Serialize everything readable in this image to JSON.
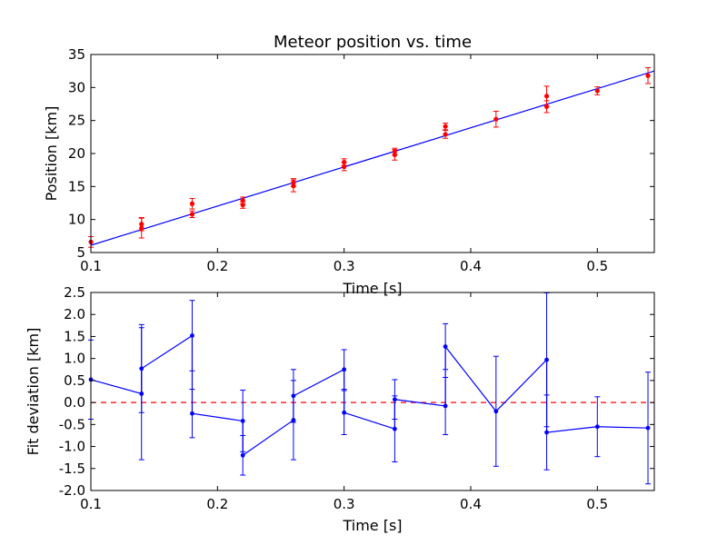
{
  "chart_data": [
    {
      "type": "scatter",
      "title": "Meteor position vs. time",
      "xlabel": "Time [s]",
      "ylabel": "Position [km]",
      "xlim": [
        0.1,
        0.545
      ],
      "ylim": [
        5,
        35
      ],
      "xticks": [
        0.1,
        0.2,
        0.3,
        0.4,
        0.5
      ],
      "yticks": [
        5,
        10,
        15,
        20,
        25,
        30,
        35
      ],
      "grid": false,
      "colors": {
        "points": "#ff0000",
        "fit": "#0000ff"
      },
      "points": [
        {
          "x": 0.1,
          "y": 6.6,
          "err": 0.8
        },
        {
          "x": 0.14,
          "y": 8.7,
          "err": 1.5
        },
        {
          "x": 0.14,
          "y": 9.3,
          "err": 1.0
        },
        {
          "x": 0.18,
          "y": 10.8,
          "err": 0.5
        },
        {
          "x": 0.18,
          "y": 12.4,
          "err": 0.8
        },
        {
          "x": 0.22,
          "y": 12.2,
          "err": 0.5
        },
        {
          "x": 0.22,
          "y": 12.9,
          "err": 0.5
        },
        {
          "x": 0.26,
          "y": 15.1,
          "err": 0.9
        },
        {
          "x": 0.26,
          "y": 15.6,
          "err": 0.6
        },
        {
          "x": 0.3,
          "y": 18.0,
          "err": 0.6
        },
        {
          "x": 0.3,
          "y": 18.7,
          "err": 0.5
        },
        {
          "x": 0.34,
          "y": 19.8,
          "err": 0.8
        },
        {
          "x": 0.34,
          "y": 20.3,
          "err": 0.5
        },
        {
          "x": 0.38,
          "y": 22.9,
          "err": 0.6
        },
        {
          "x": 0.38,
          "y": 24.1,
          "err": 0.5
        },
        {
          "x": 0.42,
          "y": 25.2,
          "err": 1.2
        },
        {
          "x": 0.46,
          "y": 27.1,
          "err": 0.9
        },
        {
          "x": 0.46,
          "y": 28.7,
          "err": 1.5
        },
        {
          "x": 0.5,
          "y": 29.5,
          "err": 0.6
        },
        {
          "x": 0.54,
          "y": 31.8,
          "err": 1.2
        }
      ],
      "fit_line": {
        "x": [
          0.1,
          0.545
        ],
        "y": [
          6.1,
          32.5
        ]
      }
    },
    {
      "type": "line",
      "title": "",
      "xlabel": "Time [s]",
      "ylabel": "Fit deviation [km]",
      "xlim": [
        0.1,
        0.545
      ],
      "ylim": [
        -2.0,
        2.5
      ],
      "xticks": [
        0.1,
        0.2,
        0.3,
        0.4,
        0.5
      ],
      "yticks": [
        -2.0,
        -1.5,
        -1.0,
        -0.5,
        0.0,
        0.5,
        1.0,
        1.5,
        2.0,
        2.5
      ],
      "grid": false,
      "colors": {
        "series": "#0000ff",
        "reference": "#ff0000"
      },
      "reference_line": 0.0,
      "series": [
        {
          "x": [
            0.1,
            0.14,
            0.14,
            0.18,
            0.18,
            0.22,
            0.22,
            0.26,
            0.26,
            0.3,
            0.3,
            0.34,
            0.34,
            0.38,
            0.38,
            0.42,
            0.46,
            0.46,
            0.5,
            0.54
          ],
          "y": [
            0.52,
            0.2,
            0.77,
            1.52,
            -0.25,
            -0.42,
            -1.2,
            -0.4,
            0.15,
            0.75,
            -0.23,
            -0.6,
            0.07,
            -0.08,
            1.27,
            -0.2,
            0.97,
            -0.68,
            -0.55,
            -0.58
          ],
          "err": [
            0.9,
            1.5,
            1.0,
            0.8,
            0.55,
            0.7,
            0.45,
            0.9,
            0.6,
            0.45,
            0.5,
            0.75,
            0.45,
            0.65,
            0.52,
            1.25,
            1.52,
            0.85,
            0.68,
            1.27
          ]
        }
      ]
    }
  ]
}
